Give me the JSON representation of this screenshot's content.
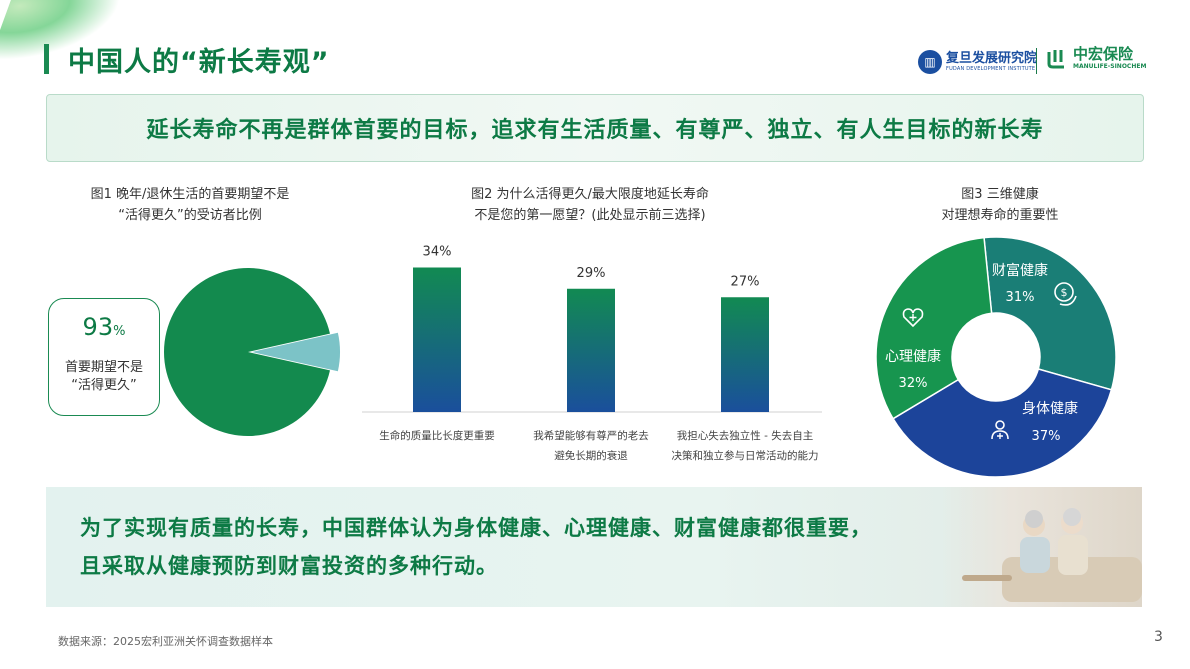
{
  "header": {
    "title": "中国人的“新长寿观”",
    "logo_fudan_cn": "复旦发展研究院",
    "logo_fudan_en": "FUDAN DEVELOPMENT INSTITUTE",
    "logo_manulife_cn": "中宏保险",
    "logo_manulife_en": "MANULIFE-SINOCHEM"
  },
  "headline": "延长寿命不再是群体首要的目标，追求有生活质量、有尊严、独立、有人生目标的新长寿",
  "fig1": {
    "title_line1": "图1 晚年/退休生活的首要期望不是",
    "title_line2": "“活得更久”的受访者比例",
    "callout_value": "93",
    "callout_unit": "%",
    "callout_label_line1": "首要期望不是",
    "callout_label_line2": "“活得更久”"
  },
  "fig2": {
    "title_line1": "图2 为什么活得更久/最大限度地延长寿命",
    "title_line2": "不是您的第一愿望？(此处显示前三选择)"
  },
  "fig3": {
    "title_line1": "图3 三维健康",
    "title_line2": "对理想寿命的重要性"
  },
  "chart_data": [
    {
      "type": "pie",
      "labels": [
        "首要期望不是“活得更久”",
        ""
      ],
      "values": [
        93,
        7
      ],
      "colors": [
        "#138a4e",
        "#7cc3c7"
      ]
    },
    {
      "type": "bar",
      "categories": [
        [
          "生命的质量比长度更重要"
        ],
        [
          "我希望能够有尊严的老去",
          "避免长期的衰退"
        ],
        [
          "我担心失去独立性 - 失去自主",
          "决策和独立参与日常活动的能力"
        ]
      ],
      "values": [
        34,
        29,
        27
      ],
      "data_labels": [
        "34%",
        "29%",
        "27%"
      ],
      "ylim": [
        0,
        40
      ],
      "colors": {
        "top": "#128a52",
        "bottom": "#1a4f9c"
      }
    },
    {
      "type": "pie",
      "donut": true,
      "labels": [
        "财富健康",
        "身体健康",
        "心理健康"
      ],
      "values": [
        31,
        37,
        32
      ],
      "data_labels": [
        "31%",
        "37%",
        "32%"
      ],
      "colors": [
        "#1a7e76",
        "#1c449a",
        "#17954f"
      ],
      "icons": [
        "money-icon",
        "person-plus-icon",
        "heart-plus-icon"
      ]
    }
  ],
  "banner": {
    "line1": "为了实现有质量的长寿，中国群体认为身体健康、心理健康、财富健康都很重要，",
    "line2": "且采取从健康预防到财富投资的多种行动。"
  },
  "footer": {
    "source": "数据来源：2025宏利亚洲关怀调查数据样本",
    "page_number": "3"
  }
}
